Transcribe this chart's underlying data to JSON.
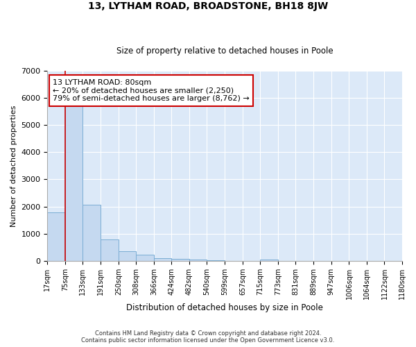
{
  "title": "13, LYTHAM ROAD, BROADSTONE, BH18 8JW",
  "subtitle": "Size of property relative to detached houses in Poole",
  "xlabel": "Distribution of detached houses by size in Poole",
  "ylabel": "Number of detached properties",
  "bar_color": "#c5d9f0",
  "bar_edge_color": "#7aadd4",
  "grid_color": "#ffffff",
  "bg_color": "#dce9f8",
  "fig_color": "#ffffff",
  "bin_edges": [
    17,
    75,
    133,
    191,
    250,
    308,
    366,
    424,
    482,
    540,
    599,
    657,
    715,
    773,
    831,
    889,
    947,
    1006,
    1064,
    1122,
    1180
  ],
  "bar_heights": [
    1780,
    5760,
    2080,
    800,
    365,
    230,
    115,
    80,
    55,
    20,
    15,
    10,
    60,
    0,
    0,
    0,
    0,
    0,
    0,
    0
  ],
  "xlim": [
    17,
    1180
  ],
  "ylim": [
    0,
    7000
  ],
  "yticks": [
    0,
    1000,
    2000,
    3000,
    4000,
    5000,
    6000,
    7000
  ],
  "property_line_x": 75,
  "property_line_color": "#cc0000",
  "annotation_text": "13 LYTHAM ROAD: 80sqm\n← 20% of detached houses are smaller (2,250)\n79% of semi-detached houses are larger (8,762) →",
  "annotation_box_color": "#cc0000",
  "footnote1": "Contains HM Land Registry data © Crown copyright and database right 2024.",
  "footnote2": "Contains public sector information licensed under the Open Government Licence v3.0.",
  "tick_labels": [
    "17sqm",
    "75sqm",
    "133sqm",
    "191sqm",
    "250sqm",
    "308sqm",
    "366sqm",
    "424sqm",
    "482sqm",
    "540sqm",
    "599sqm",
    "657sqm",
    "715sqm",
    "773sqm",
    "831sqm",
    "889sqm",
    "947sqm",
    "1006sqm",
    "1064sqm",
    "1122sqm",
    "1180sqm"
  ]
}
